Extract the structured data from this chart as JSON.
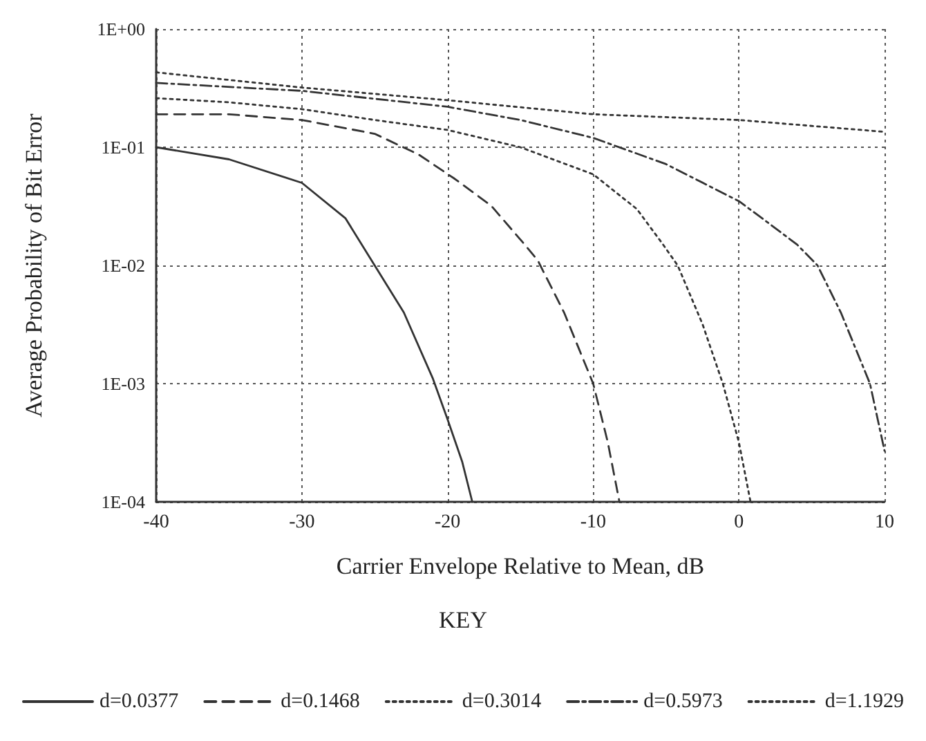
{
  "chart_data": {
    "type": "line",
    "xlabel": "Carrier Envelope Relative to Mean, dB",
    "ylabel": "Average Probability of Bit Error",
    "legend_title": "KEY",
    "legend": "bottom",
    "grid": true,
    "log": "y",
    "marker": "none",
    "xlim": [
      -40,
      10
    ],
    "xticks": [
      -40,
      -30,
      -20,
      -10,
      0,
      10
    ],
    "ylim": [
      0.0001,
      1
    ],
    "yticks": [
      {
        "value": 1,
        "label": "1E+00"
      },
      {
        "value": 0.1,
        "label": "1E-01"
      },
      {
        "value": 0.01,
        "label": "1E-02"
      },
      {
        "value": 0.001,
        "label": "1E-03"
      },
      {
        "value": 0.0001,
        "label": "1E-04"
      }
    ],
    "series": [
      {
        "name": "d=0.0377",
        "color": "#333333",
        "line_style": "solid",
        "x": [
          -40,
          -35,
          -30,
          -27,
          -25,
          -23,
          -21,
          -20,
          -19,
          -18.3
        ],
        "values": [
          0.1,
          0.079,
          0.05,
          0.025,
          0.01,
          0.004,
          0.0011,
          0.0005,
          0.00022,
          0.0001
        ]
      },
      {
        "name": "d=0.1468",
        "color": "#333333",
        "line_style": "dashed",
        "x": [
          -40,
          -35,
          -30,
          -25,
          -22,
          -19.5,
          -17,
          -14.7,
          -13.8,
          -12,
          -10,
          -9,
          -8.2
        ],
        "values": [
          0.19,
          0.19,
          0.17,
          0.13,
          0.087,
          0.054,
          0.032,
          0.015,
          0.011,
          0.004,
          0.001,
          0.00032,
          0.0001
        ]
      },
      {
        "name": "d=0.3014",
        "color": "#333333",
        "line_style": "dotted",
        "x": [
          -40,
          -35,
          -30,
          -25,
          -20,
          -15,
          -10,
          -7,
          -5.2,
          -4.2,
          -2.5,
          -1.1,
          0,
          0.8
        ],
        "values": [
          0.26,
          0.24,
          0.21,
          0.17,
          0.14,
          0.1,
          0.059,
          0.03,
          0.015,
          0.01,
          0.0032,
          0.001,
          0.00032,
          0.0001
        ]
      },
      {
        "name": "d=0.5973",
        "color": "#333333",
        "line_style": "dashdot",
        "x": [
          -40,
          -30,
          -20,
          -15,
          -10,
          -5,
          0,
          2,
          4,
          5.4,
          7,
          9,
          10
        ],
        "values": [
          0.35,
          0.3,
          0.22,
          0.17,
          0.12,
          0.072,
          0.035,
          0.023,
          0.015,
          0.01,
          0.004,
          0.001,
          0.00027
        ]
      },
      {
        "name": "d=1.1929",
        "color": "#333333",
        "line_style": "dotted",
        "x": [
          -40,
          -30,
          -20,
          -10,
          0,
          10
        ],
        "values": [
          0.43,
          0.32,
          0.25,
          0.19,
          0.17,
          0.135
        ]
      }
    ]
  }
}
